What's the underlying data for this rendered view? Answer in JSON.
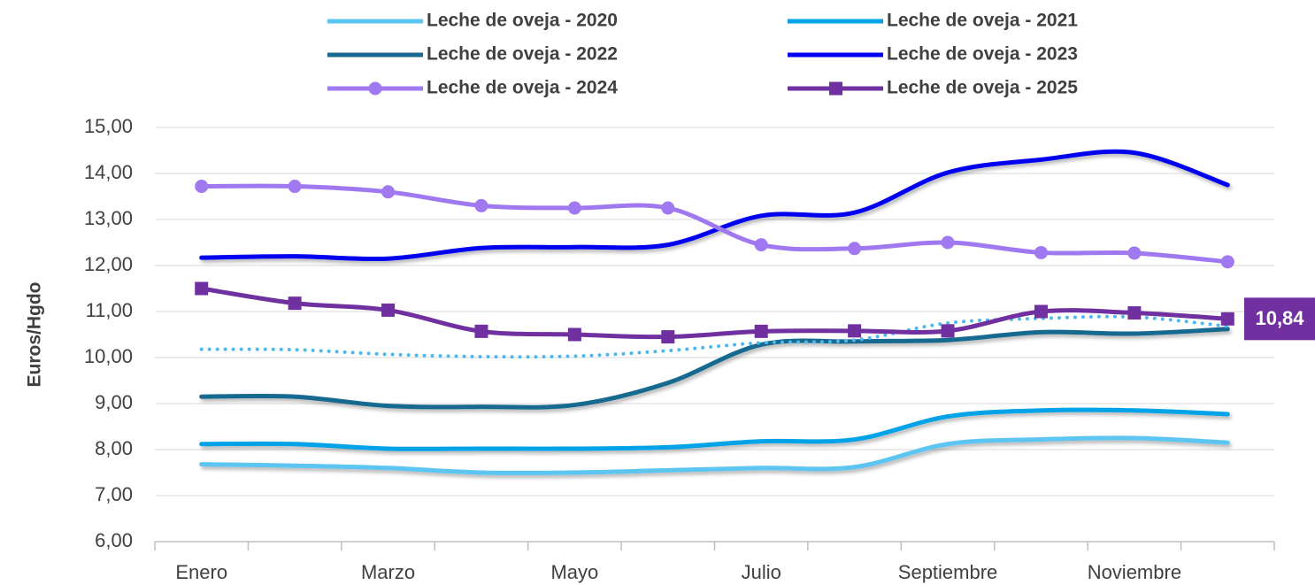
{
  "chart_data": {
    "type": "line",
    "y_label": "Euros/Hgdo",
    "categories": [
      "Enero",
      null,
      "Marzo",
      null,
      "Mayo",
      null,
      "Julio",
      null,
      "Septiembre",
      null,
      "Noviembre",
      null
    ],
    "ylim": [
      6,
      15
    ],
    "yticks": [
      {
        "value": 6,
        "label": "6,00"
      },
      {
        "value": 7,
        "label": "7,00"
      },
      {
        "value": 8,
        "label": "8,00"
      },
      {
        "value": 9,
        "label": "9,00"
      },
      {
        "value": 10,
        "label": "10,00"
      },
      {
        "value": 11,
        "label": "11,00"
      },
      {
        "value": 12,
        "label": "12,00"
      },
      {
        "value": 13,
        "label": "13,00"
      },
      {
        "value": 14,
        "label": "14,00"
      },
      {
        "value": 15,
        "label": "15,00"
      }
    ],
    "grid": true,
    "legend": "top",
    "series": [
      {
        "name": "Leche de oveja - 2020",
        "color": "#5bc5f2",
        "values": [
          7.68,
          7.65,
          7.6,
          7.5,
          7.5,
          7.55,
          7.6,
          7.62,
          8.12,
          8.22,
          8.25,
          8.15
        ]
      },
      {
        "name": "Leche de oveja - 2021",
        "color": "#00a2e8",
        "values": [
          8.12,
          8.12,
          8.02,
          8.02,
          8.02,
          8.05,
          8.18,
          8.22,
          8.72,
          8.85,
          8.85,
          8.77
        ]
      },
      {
        "name": "Leche de oveja - 2022",
        "color": "#17698f",
        "values": [
          9.15,
          9.15,
          8.95,
          8.93,
          8.97,
          9.45,
          10.28,
          10.35,
          10.38,
          10.55,
          10.52,
          10.62
        ]
      },
      {
        "name": "Leche de oveja - 2023",
        "color": "#0000f0",
        "values": [
          12.17,
          12.2,
          12.15,
          12.38,
          12.4,
          12.45,
          13.08,
          13.15,
          14.02,
          14.3,
          14.45,
          13.75
        ]
      },
      {
        "color": "#4db8ec",
        "dash": "dotted",
        "values": [
          10.18,
          10.17,
          10.07,
          10.02,
          10.03,
          10.15,
          10.32,
          10.38,
          10.75,
          10.85,
          10.88,
          10.68
        ]
      },
      {
        "name": "Leche de oveja - 2024",
        "color": "#a078f0",
        "marker": "circle",
        "values": [
          13.72,
          13.72,
          13.6,
          13.3,
          13.25,
          13.25,
          12.45,
          12.37,
          12.5,
          12.28,
          12.27,
          12.08
        ]
      },
      {
        "name": "Leche de oveja - 2025",
        "color": "#7030a0",
        "marker": "square",
        "values": [
          11.5,
          11.18,
          11.03,
          10.57,
          10.5,
          10.45,
          10.57,
          10.58,
          10.58,
          11.0,
          10.97,
          10.84
        ],
        "value_labels": [
          null,
          null,
          null,
          null,
          null,
          null,
          null,
          null,
          null,
          null,
          null,
          "10,84"
        ]
      }
    ]
  }
}
